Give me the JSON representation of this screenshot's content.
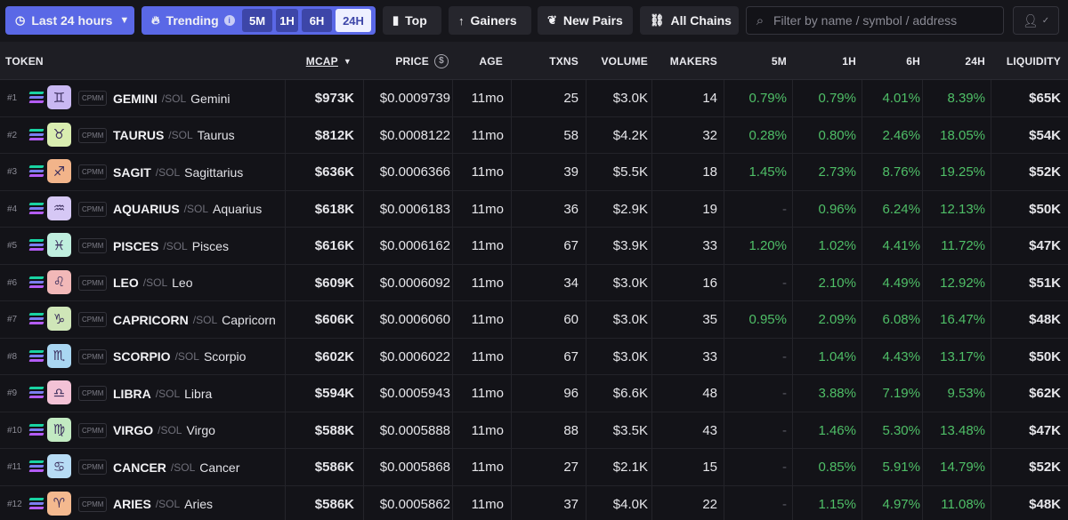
{
  "toolbar": {
    "time_filter": "Last 24 hours",
    "trending_label": "Trending",
    "intervals": [
      "5M",
      "1H",
      "6H",
      "24H"
    ],
    "active_interval": "24H",
    "top_label": "Top",
    "gainers_label": "Gainers",
    "new_pairs_label": "New Pairs",
    "all_chains_label": "All Chains",
    "search_placeholder": "Filter by name / symbol / address"
  },
  "table": {
    "headers": {
      "token": "TOKEN",
      "mcap": "MCAP",
      "price": "PRICE",
      "age": "AGE",
      "txns": "TXNS",
      "volume": "VOLUME",
      "makers": "MAKERS",
      "m5": "5M",
      "h1": "1H",
      "h6": "6H",
      "h24": "24H",
      "liquidity": "LIQUIDITY"
    },
    "rows": [
      {
        "rank": "#1",
        "dex": "CPMM",
        "symbol": "GEMINI",
        "quote": "/SOL",
        "name": "Gemini",
        "glyph": "♊",
        "color": "#c9b8f2",
        "mcap": "$973K",
        "price": "$0.0009739",
        "age": "11mo",
        "txns": "25",
        "volume": "$3.0K",
        "makers": "14",
        "m5": "0.79%",
        "h1": "0.79%",
        "h6": "4.01%",
        "h24": "8.39%",
        "liquidity": "$65K"
      },
      {
        "rank": "#2",
        "dex": "CPMM",
        "symbol": "TAURUS",
        "quote": "/SOL",
        "name": "Taurus",
        "glyph": "♉",
        "color": "#d9edb0",
        "mcap": "$812K",
        "price": "$0.0008122",
        "age": "11mo",
        "txns": "58",
        "volume": "$4.2K",
        "makers": "32",
        "m5": "0.28%",
        "h1": "0.80%",
        "h6": "2.46%",
        "h24": "18.05%",
        "liquidity": "$54K"
      },
      {
        "rank": "#3",
        "dex": "CPMM",
        "symbol": "SAGIT",
        "quote": "/SOL",
        "name": "Sagittarius",
        "glyph": "♐",
        "color": "#f2b48a",
        "mcap": "$636K",
        "price": "$0.0006366",
        "age": "11mo",
        "txns": "39",
        "volume": "$5.5K",
        "makers": "18",
        "m5": "1.45%",
        "h1": "2.73%",
        "h6": "8.76%",
        "h24": "19.25%",
        "liquidity": "$52K"
      },
      {
        "rank": "#4",
        "dex": "CPMM",
        "symbol": "AQUARIUS",
        "quote": "/SOL",
        "name": "Aquarius",
        "glyph": "♒",
        "color": "#d6c8f5",
        "mcap": "$618K",
        "price": "$0.0006183",
        "age": "11mo",
        "txns": "36",
        "volume": "$2.9K",
        "makers": "19",
        "m5": "-",
        "h1": "0.96%",
        "h6": "6.24%",
        "h24": "12.13%",
        "liquidity": "$50K"
      },
      {
        "rank": "#5",
        "dex": "CPMM",
        "symbol": "PISCES",
        "quote": "/SOL",
        "name": "Pisces",
        "glyph": "♓",
        "color": "#bfeede",
        "mcap": "$616K",
        "price": "$0.0006162",
        "age": "11mo",
        "txns": "67",
        "volume": "$3.9K",
        "makers": "33",
        "m5": "1.20%",
        "h1": "1.02%",
        "h6": "4.41%",
        "h24": "11.72%",
        "liquidity": "$47K"
      },
      {
        "rank": "#6",
        "dex": "CPMM",
        "symbol": "LEO",
        "quote": "/SOL",
        "name": "Leo",
        "glyph": "♌",
        "color": "#f2b8b8",
        "mcap": "$609K",
        "price": "$0.0006092",
        "age": "11mo",
        "txns": "34",
        "volume": "$3.0K",
        "makers": "16",
        "m5": "-",
        "h1": "2.10%",
        "h6": "4.49%",
        "h24": "12.92%",
        "liquidity": "$51K"
      },
      {
        "rank": "#7",
        "dex": "CPMM",
        "symbol": "CAPRICORN",
        "quote": "/SOL",
        "name": "Capricorn",
        "glyph": "♑",
        "color": "#cfe6b8",
        "mcap": "$606K",
        "price": "$0.0006060",
        "age": "11mo",
        "txns": "60",
        "volume": "$3.0K",
        "makers": "35",
        "m5": "0.95%",
        "h1": "2.09%",
        "h6": "6.08%",
        "h24": "16.47%",
        "liquidity": "$48K"
      },
      {
        "rank": "#8",
        "dex": "CPMM",
        "symbol": "SCORPIO",
        "quote": "/SOL",
        "name": "Scorpio",
        "glyph": "♏",
        "color": "#a9d6f2",
        "mcap": "$602K",
        "price": "$0.0006022",
        "age": "11mo",
        "txns": "67",
        "volume": "$3.0K",
        "makers": "33",
        "m5": "-",
        "h1": "1.04%",
        "h6": "4.43%",
        "h24": "13.17%",
        "liquidity": "$50K"
      },
      {
        "rank": "#9",
        "dex": "CPMM",
        "symbol": "LIBRA",
        "quote": "/SOL",
        "name": "Libra",
        "glyph": "♎",
        "color": "#f3c2d6",
        "mcap": "$594K",
        "price": "$0.0005943",
        "age": "11mo",
        "txns": "96",
        "volume": "$6.6K",
        "makers": "48",
        "m5": "-",
        "h1": "3.88%",
        "h6": "7.19%",
        "h24": "9.53%",
        "liquidity": "$62K"
      },
      {
        "rank": "#10",
        "dex": "CPMM",
        "symbol": "VIRGO",
        "quote": "/SOL",
        "name": "Virgo",
        "glyph": "♍",
        "color": "#c2eac2",
        "mcap": "$588K",
        "price": "$0.0005888",
        "age": "11mo",
        "txns": "88",
        "volume": "$3.5K",
        "makers": "43",
        "m5": "-",
        "h1": "1.46%",
        "h6": "5.30%",
        "h24": "13.48%",
        "liquidity": "$47K"
      },
      {
        "rank": "#11",
        "dex": "CPMM",
        "symbol": "CANCER",
        "quote": "/SOL",
        "name": "Cancer",
        "glyph": "♋",
        "color": "#b7dcf5",
        "mcap": "$586K",
        "price": "$0.0005868",
        "age": "11mo",
        "txns": "27",
        "volume": "$2.1K",
        "makers": "15",
        "m5": "-",
        "h1": "0.85%",
        "h6": "5.91%",
        "h24": "14.79%",
        "liquidity": "$52K"
      },
      {
        "rank": "#12",
        "dex": "CPMM",
        "symbol": "ARIES",
        "quote": "/SOL",
        "name": "Aries",
        "glyph": "♈",
        "color": "#f4b98f",
        "mcap": "$586K",
        "price": "$0.0005862",
        "age": "11mo",
        "txns": "37",
        "volume": "$4.0K",
        "makers": "22",
        "m5": "-",
        "h1": "1.15%",
        "h6": "4.97%",
        "h24": "11.08%",
        "liquidity": "$48K"
      }
    ]
  },
  "colors": {
    "accent": "#5a68e6",
    "positive": "#4fbf67",
    "solana_purple": "#9b5cf6",
    "solana_green": "#19d3a2"
  }
}
